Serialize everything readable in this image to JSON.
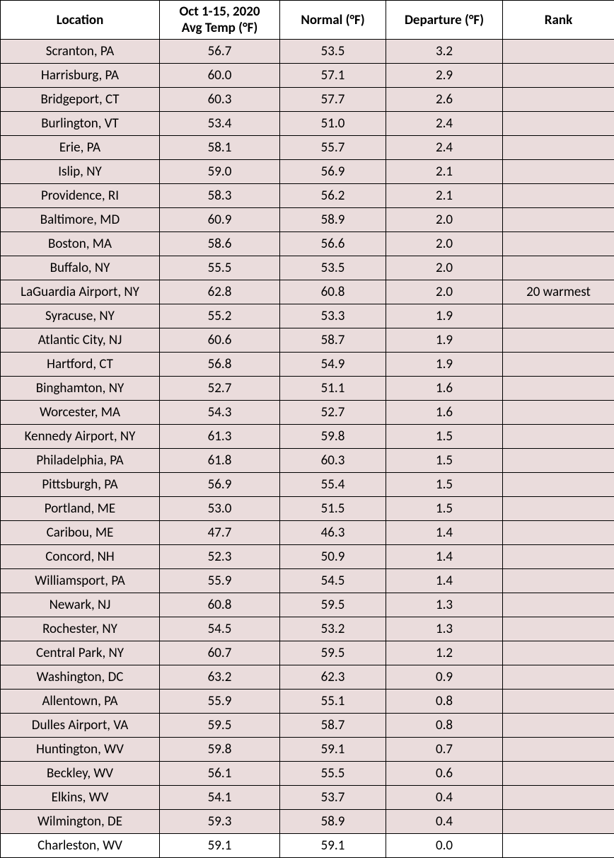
{
  "table": {
    "background_color": "#ffffff",
    "shaded_row_bg": "#eadcdc",
    "plain_row_bg": "#ffffff",
    "border_color": "#000000",
    "text_color": "#000000",
    "font_family": "Calibri",
    "header_fontsize": 19,
    "cell_fontsize": 19,
    "columns": [
      {
        "line1": "",
        "line2": "Location"
      },
      {
        "line1": "Oct 1-15, 2020",
        "line2": "Avg Temp (°F)"
      },
      {
        "line1": "",
        "line2": "Normal (°F)"
      },
      {
        "line1": "",
        "line2": "Departure (°F)"
      },
      {
        "line1": "",
        "line2": "Rank"
      }
    ],
    "rows": [
      {
        "location": "Scranton, PA",
        "avg": "56.7",
        "normal": "53.5",
        "departure": "3.2",
        "rank": "",
        "shaded": true
      },
      {
        "location": "Harrisburg, PA",
        "avg": "60.0",
        "normal": "57.1",
        "departure": "2.9",
        "rank": "",
        "shaded": true
      },
      {
        "location": "Bridgeport, CT",
        "avg": "60.3",
        "normal": "57.7",
        "departure": "2.6",
        "rank": "",
        "shaded": true
      },
      {
        "location": "Burlington, VT",
        "avg": "53.4",
        "normal": "51.0",
        "departure": "2.4",
        "rank": "",
        "shaded": true
      },
      {
        "location": "Erie, PA",
        "avg": "58.1",
        "normal": "55.7",
        "departure": "2.4",
        "rank": "",
        "shaded": true
      },
      {
        "location": "Islip, NY",
        "avg": "59.0",
        "normal": "56.9",
        "departure": "2.1",
        "rank": "",
        "shaded": true
      },
      {
        "location": "Providence, RI",
        "avg": "58.3",
        "normal": "56.2",
        "departure": "2.1",
        "rank": "",
        "shaded": true
      },
      {
        "location": "Baltimore, MD",
        "avg": "60.9",
        "normal": "58.9",
        "departure": "2.0",
        "rank": "",
        "shaded": true
      },
      {
        "location": "Boston, MA",
        "avg": "58.6",
        "normal": "56.6",
        "departure": "2.0",
        "rank": "",
        "shaded": true
      },
      {
        "location": "Buffalo, NY",
        "avg": "55.5",
        "normal": "53.5",
        "departure": "2.0",
        "rank": "",
        "shaded": true
      },
      {
        "location": "LaGuardia Airport, NY",
        "avg": "62.8",
        "normal": "60.8",
        "departure": "2.0",
        "rank": "20 warmest",
        "shaded": true
      },
      {
        "location": "Syracuse, NY",
        "avg": "55.2",
        "normal": "53.3",
        "departure": "1.9",
        "rank": "",
        "shaded": true
      },
      {
        "location": "Atlantic City, NJ",
        "avg": "60.6",
        "normal": "58.7",
        "departure": "1.9",
        "rank": "",
        "shaded": true
      },
      {
        "location": "Hartford, CT",
        "avg": "56.8",
        "normal": "54.9",
        "departure": "1.9",
        "rank": "",
        "shaded": true
      },
      {
        "location": "Binghamton, NY",
        "avg": "52.7",
        "normal": "51.1",
        "departure": "1.6",
        "rank": "",
        "shaded": true
      },
      {
        "location": "Worcester, MA",
        "avg": "54.3",
        "normal": "52.7",
        "departure": "1.6",
        "rank": "",
        "shaded": true
      },
      {
        "location": "Kennedy Airport, NY",
        "avg": "61.3",
        "normal": "59.8",
        "departure": "1.5",
        "rank": "",
        "shaded": true
      },
      {
        "location": "Philadelphia, PA",
        "avg": "61.8",
        "normal": "60.3",
        "departure": "1.5",
        "rank": "",
        "shaded": true
      },
      {
        "location": "Pittsburgh, PA",
        "avg": "56.9",
        "normal": "55.4",
        "departure": "1.5",
        "rank": "",
        "shaded": true
      },
      {
        "location": "Portland, ME",
        "avg": "53.0",
        "normal": "51.5",
        "departure": "1.5",
        "rank": "",
        "shaded": true
      },
      {
        "location": "Caribou, ME",
        "avg": "47.7",
        "normal": "46.3",
        "departure": "1.4",
        "rank": "",
        "shaded": true
      },
      {
        "location": "Concord, NH",
        "avg": "52.3",
        "normal": "50.9",
        "departure": "1.4",
        "rank": "",
        "shaded": true
      },
      {
        "location": "Williamsport, PA",
        "avg": "55.9",
        "normal": "54.5",
        "departure": "1.4",
        "rank": "",
        "shaded": true
      },
      {
        "location": "Newark, NJ",
        "avg": "60.8",
        "normal": "59.5",
        "departure": "1.3",
        "rank": "",
        "shaded": true
      },
      {
        "location": "Rochester, NY",
        "avg": "54.5",
        "normal": "53.2",
        "departure": "1.3",
        "rank": "",
        "shaded": true
      },
      {
        "location": "Central Park, NY",
        "avg": "60.7",
        "normal": "59.5",
        "departure": "1.2",
        "rank": "",
        "shaded": true
      },
      {
        "location": "Washington, DC",
        "avg": "63.2",
        "normal": "62.3",
        "departure": "0.9",
        "rank": "",
        "shaded": true
      },
      {
        "location": "Allentown, PA",
        "avg": "55.9",
        "normal": "55.1",
        "departure": "0.8",
        "rank": "",
        "shaded": true
      },
      {
        "location": "Dulles Airport, VA",
        "avg": "59.5",
        "normal": "58.7",
        "departure": "0.8",
        "rank": "",
        "shaded": true
      },
      {
        "location": "Huntington, WV",
        "avg": "59.8",
        "normal": "59.1",
        "departure": "0.7",
        "rank": "",
        "shaded": true
      },
      {
        "location": "Beckley, WV",
        "avg": "56.1",
        "normal": "55.5",
        "departure": "0.6",
        "rank": "",
        "shaded": true
      },
      {
        "location": "Elkins, WV",
        "avg": "54.1",
        "normal": "53.7",
        "departure": "0.4",
        "rank": "",
        "shaded": true
      },
      {
        "location": "Wilmington, DE",
        "avg": "59.3",
        "normal": "58.9",
        "departure": "0.4",
        "rank": "",
        "shaded": true
      },
      {
        "location": "Charleston, WV",
        "avg": "59.1",
        "normal": "59.1",
        "departure": "0.0",
        "rank": "",
        "shaded": false
      }
    ]
  }
}
